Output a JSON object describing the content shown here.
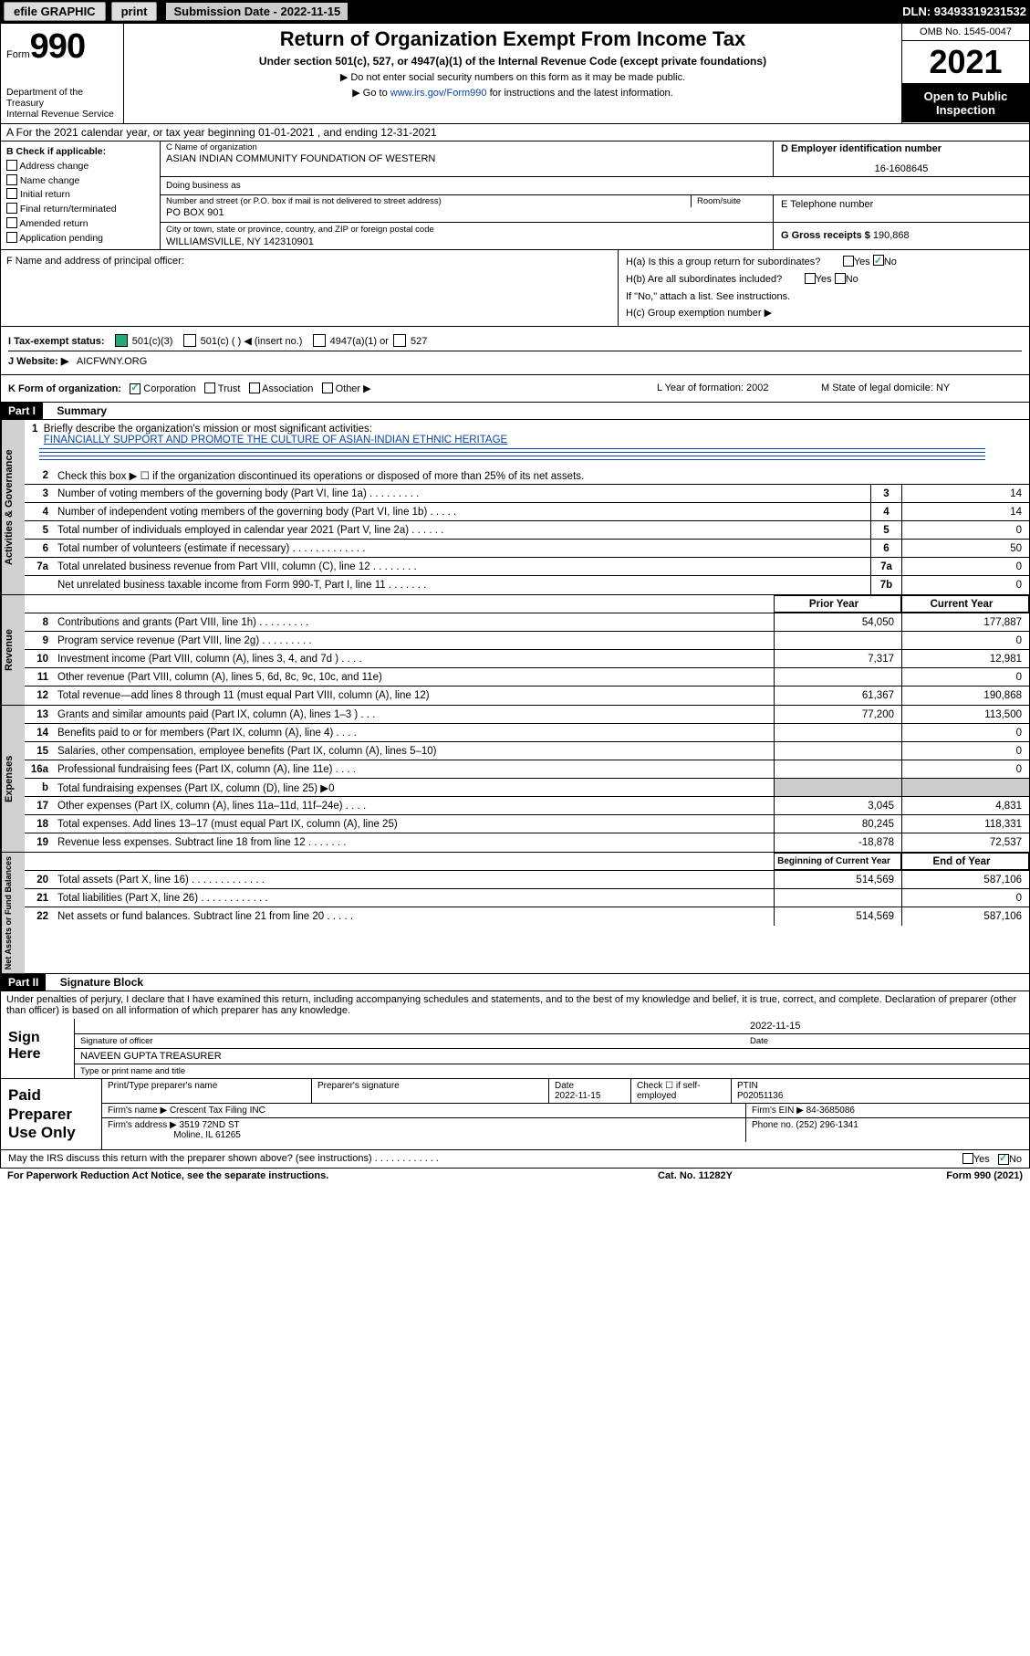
{
  "topbar": {
    "efile": "efile GRAPHIC",
    "print": "print",
    "sub_label": "Submission Date - 2022-11-15",
    "dln": "DLN: 93493319231532"
  },
  "header": {
    "form_word": "Form",
    "form_num": "990",
    "dept": "Department of the Treasury",
    "irs": "Internal Revenue Service",
    "title": "Return of Organization Exempt From Income Tax",
    "subtitle": "Under section 501(c), 527, or 4947(a)(1) of the Internal Revenue Code (except private foundations)",
    "note1": "▶ Do not enter social security numbers on this form as it may be made public.",
    "note2_pre": "▶ Go to ",
    "note2_link": "www.irs.gov/Form990",
    "note2_post": " for instructions and the latest information.",
    "omb": "OMB No. 1545-0047",
    "year": "2021",
    "open": "Open to Public Inspection"
  },
  "row_a": "A For the 2021 calendar year, or tax year beginning 01-01-2021  , and ending 12-31-2021",
  "col_b": {
    "hdr": "B Check if applicable:",
    "items": [
      "Address change",
      "Name change",
      "Initial return",
      "Final return/terminated",
      "Amended return",
      "Application pending"
    ]
  },
  "col_c": {
    "name_lbl": "C Name of organization",
    "name": "ASIAN INDIAN COMMUNITY FOUNDATION OF WESTERN",
    "dba_lbl": "Doing business as",
    "addr_lbl": "Number and street (or P.O. box if mail is not delivered to street address)",
    "room_lbl": "Room/suite",
    "addr": "PO BOX 901",
    "city_lbl": "City or town, state or province, country, and ZIP or foreign postal code",
    "city": "WILLIAMSVILLE, NY  142310901"
  },
  "col_d": {
    "lbl": "D Employer identification number",
    "val": "16-1608645"
  },
  "col_e": {
    "lbl": "E Telephone number"
  },
  "col_g": {
    "lbl": "G Gross receipts $",
    "val": "190,868"
  },
  "row_f": "F  Name and address of principal officer:",
  "row_h": {
    "a": "H(a)  Is this a group return for subordinates?",
    "a_yes": "Yes",
    "a_no": "No",
    "b": "H(b)  Are all subordinates included?",
    "b_note": "If \"No,\" attach a list. See instructions.",
    "c": "H(c)  Group exemption number ▶"
  },
  "row_i": {
    "lbl": "I   Tax-exempt status:",
    "o1": "501(c)(3)",
    "o2": "501(c) (  ) ◀ (insert no.)",
    "o3": "4947(a)(1) or",
    "o4": "527"
  },
  "row_j": {
    "lbl": "J   Website: ▶",
    "val": "AICFWNY.ORG"
  },
  "row_k": {
    "lbl": "K Form of organization:",
    "o1": "Corporation",
    "o2": "Trust",
    "o3": "Association",
    "o4": "Other ▶",
    "l": "L Year of formation: 2002",
    "m": "M State of legal domicile: NY"
  },
  "part1": {
    "hdr": "Part I",
    "title": "Summary"
  },
  "brief": {
    "num": "1",
    "lbl": "Briefly describe the organization's mission or most significant activities:",
    "txt": "FINANCIALLY SUPPORT AND PROMOTE THE CULTURE OF ASIAN-INDIAN ETHNIC HERITAGE"
  },
  "line2": "Check this box ▶ ☐  if the organization discontinued its operations or disposed of more than 25% of its net assets.",
  "governance": [
    {
      "n": "3",
      "t": "Number of voting members of the governing body (Part VI, line 1a)   .   .   .   .   .   .   .   .   .",
      "b": "3",
      "v": "14"
    },
    {
      "n": "4",
      "t": "Number of independent voting members of the governing body (Part VI, line 1b)   .   .   .   .   .",
      "b": "4",
      "v": "14"
    },
    {
      "n": "5",
      "t": "Total number of individuals employed in calendar year 2021 (Part V, line 2a)   .   .   .   .   .   .",
      "b": "5",
      "v": "0"
    },
    {
      "n": "6",
      "t": "Total number of volunteers (estimate if necessary)   .   .   .   .   .   .   .   .   .   .   .   .   .",
      "b": "6",
      "v": "50"
    },
    {
      "n": "7a",
      "t": "Total unrelated business revenue from Part VIII, column (C), line 12   .   .   .   .   .   .   .   .",
      "b": "7a",
      "v": "0"
    },
    {
      "n": "",
      "t": "Net unrelated business taxable income from Form 990-T, Part I, line 11   .   .   .   .   .   .   .",
      "b": "7b",
      "v": "0"
    }
  ],
  "rev_hdr": {
    "py": "Prior Year",
    "cy": "Current Year"
  },
  "revenue": [
    {
      "n": "8",
      "t": "Contributions and grants (Part VIII, line 1h)   .   .   .   .   .   .   .   .   .",
      "p": "54,050",
      "c": "177,887"
    },
    {
      "n": "9",
      "t": "Program service revenue (Part VIII, line 2g)   .   .   .   .   .   .   .   .   .",
      "p": "",
      "c": "0"
    },
    {
      "n": "10",
      "t": "Investment income (Part VIII, column (A), lines 3, 4, and 7d )   .   .   .   .",
      "p": "7,317",
      "c": "12,981"
    },
    {
      "n": "11",
      "t": "Other revenue (Part VIII, column (A), lines 5, 6d, 8c, 9c, 10c, and 11e)",
      "p": "",
      "c": "0"
    },
    {
      "n": "12",
      "t": "Total revenue—add lines 8 through 11 (must equal Part VIII, column (A), line 12)",
      "p": "61,367",
      "c": "190,868"
    }
  ],
  "expenses": [
    {
      "n": "13",
      "t": "Grants and similar amounts paid (Part IX, column (A), lines 1–3 )   .   .   .",
      "p": "77,200",
      "c": "113,500"
    },
    {
      "n": "14",
      "t": "Benefits paid to or for members (Part IX, column (A), line 4)   .   .   .   .",
      "p": "",
      "c": "0"
    },
    {
      "n": "15",
      "t": "Salaries, other compensation, employee benefits (Part IX, column (A), lines 5–10)",
      "p": "",
      "c": "0"
    },
    {
      "n": "16a",
      "t": "Professional fundraising fees (Part IX, column (A), line 11e)   .   .   .   .",
      "p": "",
      "c": "0"
    },
    {
      "n": "b",
      "t": "Total fundraising expenses (Part IX, column (D), line 25) ▶0",
      "p": "shade",
      "c": "shade"
    },
    {
      "n": "17",
      "t": "Other expenses (Part IX, column (A), lines 11a–11d, 11f–24e)   .   .   .   .",
      "p": "3,045",
      "c": "4,831"
    },
    {
      "n": "18",
      "t": "Total expenses. Add lines 13–17 (must equal Part IX, column (A), line 25)",
      "p": "80,245",
      "c": "118,331"
    },
    {
      "n": "19",
      "t": "Revenue less expenses. Subtract line 18 from line 12   .   .   .   .   .   .   .",
      "p": "-18,878",
      "c": "72,537"
    }
  ],
  "na_hdr": {
    "b": "Beginning of Current Year",
    "e": "End of Year"
  },
  "netassets": [
    {
      "n": "20",
      "t": "Total assets (Part X, line 16)   .   .   .   .   .   .   .   .   .   .   .   .   .",
      "p": "514,569",
      "c": "587,106"
    },
    {
      "n": "21",
      "t": "Total liabilities (Part X, line 26)   .   .   .   .   .   .   .   .   .   .   .   .",
      "p": "",
      "c": "0"
    },
    {
      "n": "22",
      "t": "Net assets or fund balances. Subtract line 21 from line 20   .   .   .   .   .",
      "p": "514,569",
      "c": "587,106"
    }
  ],
  "part2": {
    "hdr": "Part II",
    "title": "Signature Block"
  },
  "sig_decl": "Under penalties of perjury, I declare that I have examined this return, including accompanying schedules and statements, and to the best of my knowledge and belief, it is true, correct, and complete. Declaration of preparer (other than officer) is based on all information of which preparer has any knowledge.",
  "sig": {
    "here": "Sign Here",
    "date": "2022-11-15",
    "off_lbl": "Signature of officer",
    "date_lbl": "Date",
    "name": "NAVEEN GUPTA TREASURER",
    "name_lbl": "Type or print name and title"
  },
  "prep": {
    "title": "Paid Preparer Use Only",
    "h1": "Print/Type preparer's name",
    "h2": "Preparer's signature",
    "h3": "Date",
    "h3v": "2022-11-15",
    "h4": "Check ☐ if self-employed",
    "h5": "PTIN",
    "h5v": "P02051136",
    "firm_lbl": "Firm's name    ▶",
    "firm": "Crescent Tax Filing INC",
    "ein_lbl": "Firm's EIN ▶",
    "ein": "84-3685086",
    "addr_lbl": "Firm's address ▶",
    "addr1": "3519 72ND ST",
    "addr2": "Moline, IL  61265",
    "ph_lbl": "Phone no.",
    "ph": "(252) 296-1341"
  },
  "may": "May the IRS discuss this return with the preparer shown above? (see instructions)   .   .   .   .   .   .   .   .   .   .   .   .",
  "may_yes": "Yes",
  "may_no": "No",
  "foot": {
    "l": "For Paperwork Reduction Act Notice, see the separate instructions.",
    "m": "Cat. No. 11282Y",
    "r": "Form 990 (2021)"
  },
  "vtabs": {
    "g": "Activities & Governance",
    "r": "Revenue",
    "e": "Expenses",
    "n": "Net Assets or Fund Balances"
  }
}
